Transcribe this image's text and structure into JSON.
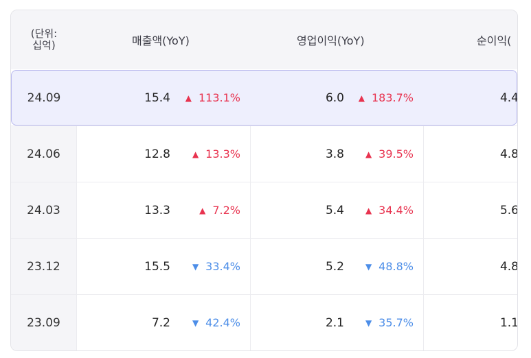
{
  "header": {
    "period_line1": "(단위:",
    "period_line2": "십억)",
    "revenue": "매출액(YoY)",
    "operating_profit": "영업이익(YoY)",
    "net_profit": "순이익("
  },
  "rows": [
    {
      "period": "24.09",
      "revenue": "15.4",
      "revenue_arrow": "▲",
      "revenue_yoy": "113.1%",
      "op": "6.0",
      "op_arrow": "▲",
      "op_yoy": "183.7%",
      "net": "4.4"
    },
    {
      "period": "24.06",
      "revenue": "12.8",
      "revenue_arrow": "▲",
      "revenue_yoy": "13.3%",
      "op": "3.8",
      "op_arrow": "▲",
      "op_yoy": "39.5%",
      "net": "4.8"
    },
    {
      "period": "24.03",
      "revenue": "13.3",
      "revenue_arrow": "▲",
      "revenue_yoy": "7.2%",
      "op": "5.4",
      "op_arrow": "▲",
      "op_yoy": "34.4%",
      "net": "5.6"
    },
    {
      "period": "23.12",
      "revenue": "15.5",
      "revenue_arrow": "▼",
      "revenue_yoy": "33.4%",
      "op": "5.2",
      "op_arrow": "▼",
      "op_yoy": "48.8%",
      "net": "4.8"
    },
    {
      "period": "23.09",
      "revenue": "7.2",
      "revenue_arrow": "▼",
      "revenue_yoy": "42.4%",
      "op": "2.1",
      "op_arrow": "▼",
      "op_yoy": "35.7%",
      "net": "1.1"
    }
  ],
  "colors": {
    "up": "#e8334f",
    "down": "#4d8ee8",
    "highlight_bg": "#eeeffd",
    "highlight_border": "#b8b8ee"
  }
}
